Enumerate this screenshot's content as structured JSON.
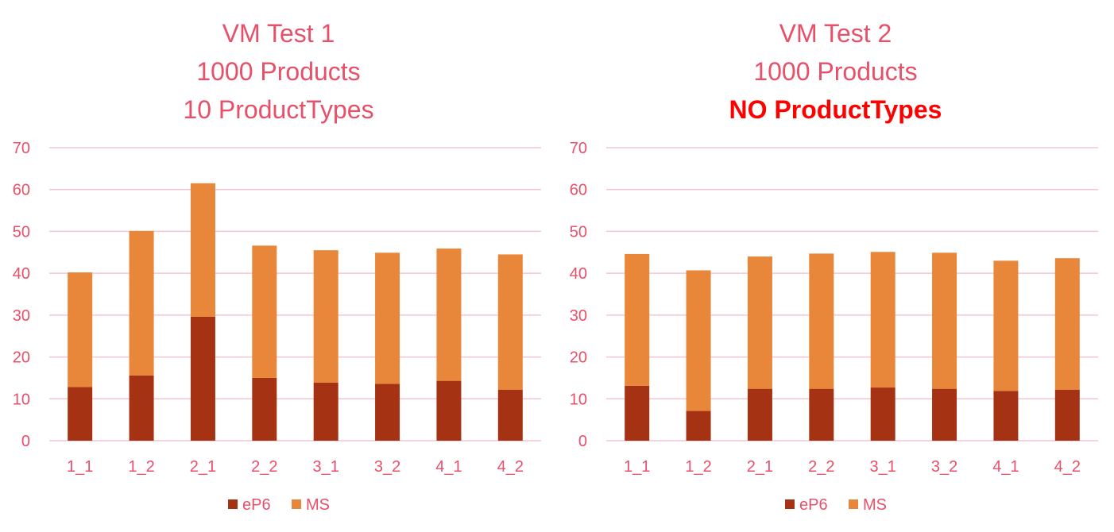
{
  "colors": {
    "ep6": "#a63214",
    "ms": "#e8873a",
    "text": "#e8506a",
    "grid": "#f3c6d2",
    "emphasis": "#ff0000"
  },
  "chart_data": [
    {
      "type": "bar",
      "stacked": true,
      "title_lines": [
        "VM Test 1",
        "1000 Products",
        "10 ProductTypes"
      ],
      "title_emphasis": [
        false,
        false,
        false
      ],
      "categories": [
        "1_1",
        "1_2",
        "2_1",
        "2_2",
        "3_1",
        "3_2",
        "4_1",
        "4_2"
      ],
      "series": [
        {
          "name": "eP6",
          "values": [
            12.8,
            15.6,
            29.6,
            15.0,
            13.9,
            13.6,
            14.3,
            12.2
          ]
        },
        {
          "name": "MS",
          "values": [
            27.4,
            34.5,
            31.9,
            31.6,
            31.6,
            31.3,
            31.6,
            32.3
          ]
        }
      ],
      "ylim": [
        0,
        70
      ],
      "yticks": [
        0,
        10,
        20,
        30,
        40,
        50,
        60,
        70
      ],
      "grid": true,
      "legend": "bottom-center"
    },
    {
      "type": "bar",
      "stacked": true,
      "title_lines": [
        "VM Test 2",
        "1000 Products",
        "NO ProductTypes"
      ],
      "title_emphasis": [
        false,
        false,
        true
      ],
      "categories": [
        "1_1",
        "1_2",
        "2_1",
        "2_2",
        "3_1",
        "3_2",
        "4_1",
        "4_2"
      ],
      "series": [
        {
          "name": "eP6",
          "values": [
            13.1,
            7.1,
            12.4,
            12.4,
            12.7,
            12.4,
            11.9,
            12.2
          ]
        },
        {
          "name": "MS",
          "values": [
            31.5,
            33.6,
            31.6,
            32.3,
            32.4,
            32.5,
            31.1,
            31.4
          ]
        }
      ],
      "ylim": [
        0,
        70
      ],
      "yticks": [
        0,
        10,
        20,
        30,
        40,
        50,
        60,
        70
      ],
      "grid": true,
      "legend": "bottom-center"
    }
  ]
}
